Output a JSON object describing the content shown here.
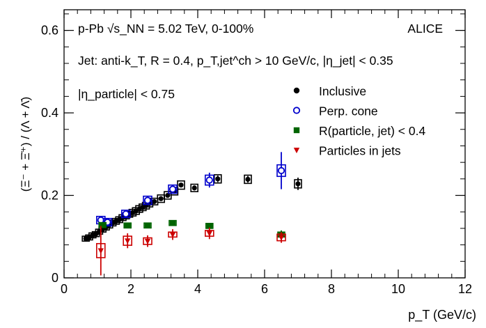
{
  "chart_data": {
    "type": "scatter",
    "title": "",
    "xlabel": "p_T (GeV/c)",
    "ylabel": "(Ξ⁻ + Ξ̄⁺) / (Λ + Λ̄)",
    "xlim": [
      0,
      12
    ],
    "ylim": [
      0,
      0.65
    ],
    "x_ticks": [
      "0",
      "2",
      "4",
      "6",
      "8",
      "10",
      "12"
    ],
    "y_ticks": [
      "0",
      "0.2",
      "0.4",
      "0.6"
    ],
    "grid": false,
    "legend_position": "top-right",
    "annotations": {
      "system": "p-Pb √s_NN = 5.02 TeV, 0-100%",
      "experiment": "ALICE",
      "jet_definition": "Jet: anti-k_T, R = 0.4, p_T,jet^ch > 10 GeV/c, |η_jet| < 0.35",
      "eta_cut": "|η_particle| < 0.75"
    },
    "series": [
      {
        "name": "Inclusive",
        "marker": "filled-circle",
        "color": "#000000",
        "x": [
          0.65,
          0.75,
          0.85,
          0.95,
          1.05,
          1.15,
          1.25,
          1.35,
          1.45,
          1.55,
          1.65,
          1.75,
          1.85,
          1.95,
          2.05,
          2.15,
          2.25,
          2.35,
          2.45,
          2.55,
          2.7,
          2.9,
          3.1,
          3.3,
          3.5,
          3.9,
          4.6,
          5.5,
          7.0
        ],
        "y": [
          0.095,
          0.098,
          0.103,
          0.106,
          0.112,
          0.117,
          0.122,
          0.128,
          0.133,
          0.137,
          0.141,
          0.146,
          0.15,
          0.154,
          0.158,
          0.162,
          0.167,
          0.171,
          0.175,
          0.18,
          0.185,
          0.192,
          0.2,
          0.21,
          0.225,
          0.218,
          0.24,
          0.239,
          0.228
        ],
        "stat_err": [
          0.003,
          0.003,
          0.003,
          0.003,
          0.003,
          0.003,
          0.003,
          0.003,
          0.003,
          0.003,
          0.003,
          0.003,
          0.003,
          0.003,
          0.003,
          0.003,
          0.003,
          0.003,
          0.003,
          0.003,
          0.003,
          0.004,
          0.004,
          0.004,
          0.005,
          0.006,
          0.008,
          0.008,
          0.015
        ],
        "sys_err": [
          0.006,
          0.006,
          0.006,
          0.006,
          0.006,
          0.006,
          0.006,
          0.007,
          0.007,
          0.007,
          0.007,
          0.007,
          0.007,
          0.007,
          0.008,
          0.008,
          0.008,
          0.008,
          0.008,
          0.008,
          0.008,
          0.009,
          0.009,
          0.009,
          0.01,
          0.009,
          0.01,
          0.01,
          0.01
        ]
      },
      {
        "name": "Perp. cone",
        "marker": "open-circle",
        "color": "#0000cc",
        "x": [
          1.1,
          1.3,
          1.85,
          2.5,
          3.25,
          4.35,
          6.5
        ],
        "y": [
          0.14,
          0.135,
          0.155,
          0.188,
          0.215,
          0.237,
          0.26
        ],
        "stat_err": [
          0.005,
          0.005,
          0.006,
          0.007,
          0.008,
          0.018,
          0.045
        ],
        "sys_err": [
          0.009,
          0.009,
          0.009,
          0.01,
          0.01,
          0.012,
          0.014
        ]
      },
      {
        "name": "R(particle, jet) < 0.4",
        "marker": "filled-square",
        "color": "#006400",
        "x": [
          1.15,
          1.9,
          2.5,
          3.25,
          4.35,
          6.5
        ],
        "y": [
          0.128,
          0.127,
          0.127,
          0.133,
          0.126,
          0.105
        ],
        "stat_err": [
          0.006,
          0.005,
          0.005,
          0.006,
          0.007,
          0.01
        ],
        "sys_err": [
          0.006,
          0.006,
          0.006,
          0.006,
          0.006,
          0.006
        ]
      },
      {
        "name": "Particles in jets",
        "marker": "filled-triangle-down",
        "color": "#cc0000",
        "x": [
          1.1,
          1.9,
          2.5,
          3.25,
          4.35,
          6.5
        ],
        "y": [
          0.066,
          0.09,
          0.089,
          0.105,
          0.108,
          0.098
        ],
        "stat_err": [
          0.06,
          0.018,
          0.014,
          0.013,
          0.014,
          0.013
        ],
        "sys_err": [
          0.017,
          0.011,
          0.008,
          0.006,
          0.007,
          0.008
        ]
      }
    ]
  }
}
